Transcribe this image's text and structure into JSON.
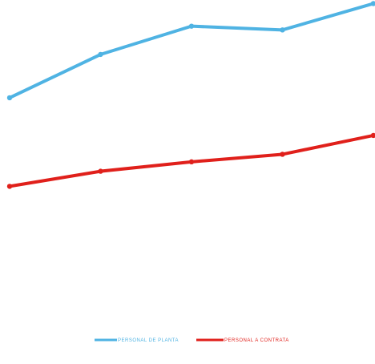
{
  "chart_data": {
    "type": "line",
    "title": "",
    "xlabel": "",
    "ylabel": "",
    "x": [
      1,
      2,
      3,
      4,
      5
    ],
    "series": [
      {
        "name": "PERSONAL DE PLANTA",
        "color": "#4fb3e3",
        "values": [
          103,
          126,
          141,
          139,
          153
        ]
      },
      {
        "name": "PERSONAL A CONTRATA",
        "color": "#e0201b",
        "values": [
          56,
          64,
          69,
          73,
          83
        ]
      }
    ],
    "ylim": [
      0,
      160
    ],
    "grid": false,
    "legend": "bottom-center"
  }
}
